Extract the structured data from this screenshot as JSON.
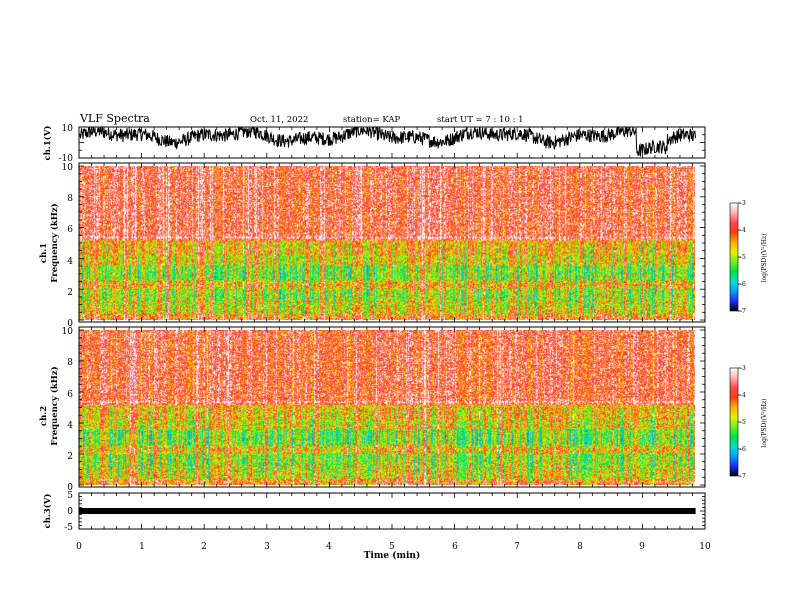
{
  "header": {
    "title": "VLF Spectra",
    "date": "Oct. 11, 2022",
    "station": "station= KAP",
    "start_ut": "start  UT =   7 : 10 : 1"
  },
  "chart_data": [
    {
      "type": "line",
      "id": "ch1-waveform",
      "ylabel": "ch.1(V)",
      "ylim": [
        -10,
        10
      ],
      "y_tick_labels": [
        "10",
        "-10"
      ],
      "xlim": [
        0,
        10
      ],
      "x_data_end": 9.85,
      "trace_color": "#000000"
    },
    {
      "type": "heatmap",
      "id": "ch1-spectrogram",
      "ylabel_top": "ch.1",
      "ylabel_bottom": "Frequency  (kHz)",
      "ylim": [
        0,
        10
      ],
      "y_tick_labels": [
        "0",
        "2",
        "4",
        "6",
        "8",
        "10"
      ],
      "xlim": [
        0,
        10
      ],
      "x_data_end": 9.85,
      "colorbar": {
        "label": "log(PSD)(V²/Hz)",
        "range": [
          -7,
          -3
        ],
        "tick_labels": [
          "-3",
          "-4",
          "-5",
          "-6",
          "-7"
        ]
      }
    },
    {
      "type": "heatmap",
      "id": "ch2-spectrogram",
      "ylabel_top": "ch.2",
      "ylabel_bottom": "Frequency  (kHz)",
      "ylim": [
        0,
        10
      ],
      "y_tick_labels": [
        "0",
        "2",
        "4",
        "6",
        "8",
        "10"
      ],
      "xlim": [
        0,
        10
      ],
      "x_data_end": 9.85,
      "colorbar": {
        "label": "log(PSD)(V²/Hz)",
        "range": [
          -7,
          -3
        ],
        "tick_labels": [
          "-3",
          "-4",
          "-5",
          "-6",
          "-7"
        ]
      }
    },
    {
      "type": "line",
      "id": "ch3-waveform",
      "ylabel": "ch.3(V)",
      "ylim": [
        -5,
        5
      ],
      "y_tick_labels": [
        "5",
        "0",
        "-5"
      ],
      "xlim": [
        0,
        10
      ],
      "x_data_end": 9.85,
      "trace_level": 0,
      "trace_color": "#000000"
    }
  ],
  "x_axis": {
    "label": "Time  (min)",
    "tick_labels": [
      "0",
      "1",
      "2",
      "3",
      "4",
      "5",
      "6",
      "7",
      "8",
      "9",
      "10"
    ]
  },
  "colormap": [
    "#000000",
    "#1a2cff",
    "#00a0ff",
    "#00e0d0",
    "#00e040",
    "#70f020",
    "#e8f000",
    "#f8b000",
    "#ff3c18",
    "#ff4a4a",
    "#ffb4b4",
    "#ffffff"
  ]
}
